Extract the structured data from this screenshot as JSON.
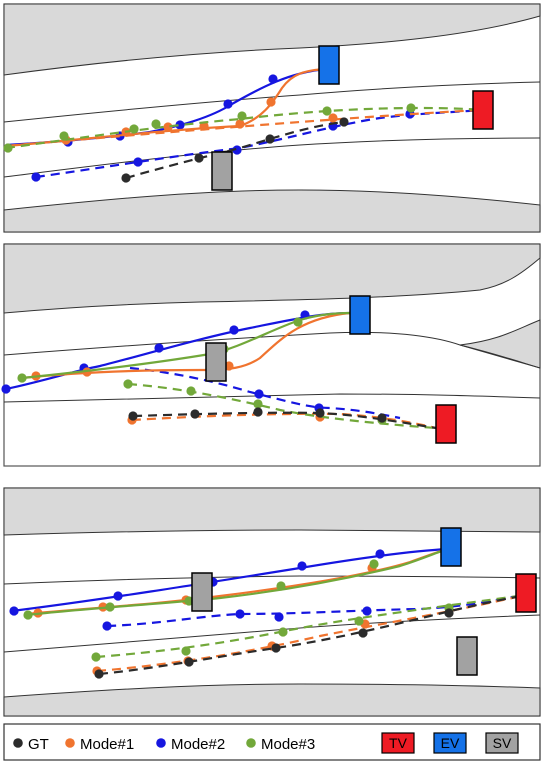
{
  "colors": {
    "gt": "#2b2b2b",
    "mode1": "#f0742f",
    "mode2": "#1616e0",
    "mode3": "#72a83a",
    "tv": "#ee1b24",
    "ev": "#1572e8",
    "sv": "#a2a2a2",
    "road_shade": "#d9d9d9"
  },
  "legend": {
    "gt": "GT",
    "mode1": "Mode#1",
    "mode2": "Mode#2",
    "mode3": "Mode#3",
    "tv": "TV",
    "ev": "EV",
    "sv": "SV"
  }
}
